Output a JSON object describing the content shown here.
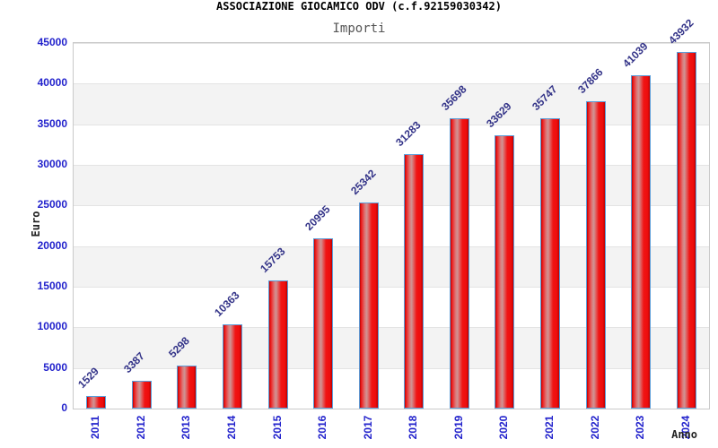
{
  "chart_data": {
    "type": "bar",
    "title": "ASSOCIAZIONE GIOCAMICO ODV (c.f.92159030342)",
    "subtitle": "Importi",
    "xlabel": "Anno",
    "ylabel": "Euro",
    "categories": [
      "2011",
      "2012",
      "2013",
      "2014",
      "2015",
      "2016",
      "2017",
      "2018",
      "2019",
      "2020",
      "2021",
      "2022",
      "2023",
      "2024"
    ],
    "values": [
      1529,
      3387,
      5298,
      10363,
      15753,
      20995,
      25342,
      31283,
      35698,
      33629,
      35747,
      37866,
      41039,
      43932
    ],
    "ylim": [
      0,
      45000
    ],
    "yticks": [
      0,
      5000,
      10000,
      15000,
      20000,
      25000,
      30000,
      35000,
      40000,
      45000
    ],
    "grid": "horizontal gridlines every 5000 with alternating white/gray bands",
    "legend_position": "none",
    "value_label_rotation": 45,
    "xtick_rotation": 90
  },
  "colors": {
    "title": "#000000",
    "subtitle": "#565656",
    "tick_label": "#2222cc",
    "value_label": "#333388",
    "axis_title": "#222222",
    "plot_border": "#c9c9c9",
    "grid_line": "#e4e4e4",
    "band_gray": "#f3f3f3",
    "bar_red": "#ee0d0d",
    "bar_border": "#5b9dd9"
  }
}
